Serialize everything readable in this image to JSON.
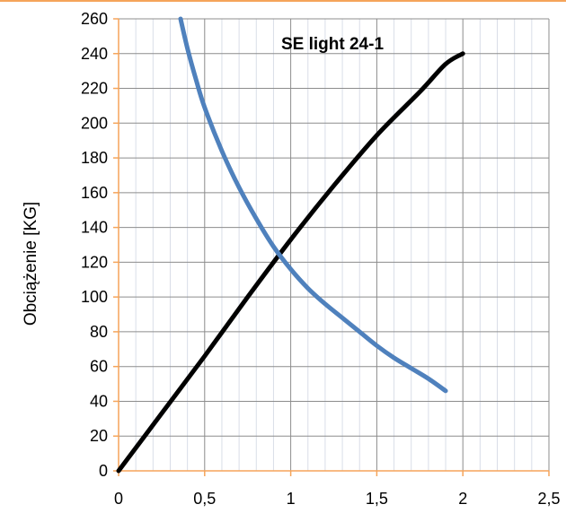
{
  "chart_data": {
    "type": "line",
    "title": "SE light 24-1",
    "xlabel": "",
    "ylabel": "Obciążenie [KG]",
    "xlim": [
      0,
      2.5
    ],
    "ylim": [
      0,
      260
    ],
    "x_ticks": [
      "0",
      "0,5",
      "1",
      "1,5",
      "2",
      "2,5"
    ],
    "y_ticks": [
      "0",
      "20",
      "40",
      "60",
      "80",
      "100",
      "120",
      "140",
      "160",
      "180",
      "200",
      "220",
      "240",
      "260"
    ],
    "x_tick_values": [
      0,
      0.5,
      1,
      1.5,
      2,
      2.5
    ],
    "y_tick_values": [
      0,
      20,
      40,
      60,
      80,
      100,
      120,
      140,
      160,
      180,
      200,
      220,
      240,
      260
    ],
    "grid": true,
    "minor_grid": true,
    "accent_color": "#F5A45A",
    "series": [
      {
        "color": "#000000",
        "x": [
          0,
          0.25,
          0.5,
          0.75,
          1.0,
          1.25,
          1.5,
          1.75,
          1.9,
          2.0
        ],
        "y": [
          0,
          33,
          66,
          100,
          133,
          164,
          193,
          218,
          234,
          240
        ]
      },
      {
        "color": "#4F81BD",
        "x": [
          0.36,
          0.4,
          0.45,
          0.5,
          0.6,
          0.7,
          0.8,
          0.9,
          1.0,
          1.1,
          1.2,
          1.3,
          1.4,
          1.5,
          1.6,
          1.7,
          1.8,
          1.9
        ],
        "y": [
          260,
          243,
          225,
          209,
          184,
          163,
          145,
          129,
          116,
          105,
          96,
          88,
          80,
          72,
          65,
          59,
          53,
          46
        ]
      }
    ]
  }
}
